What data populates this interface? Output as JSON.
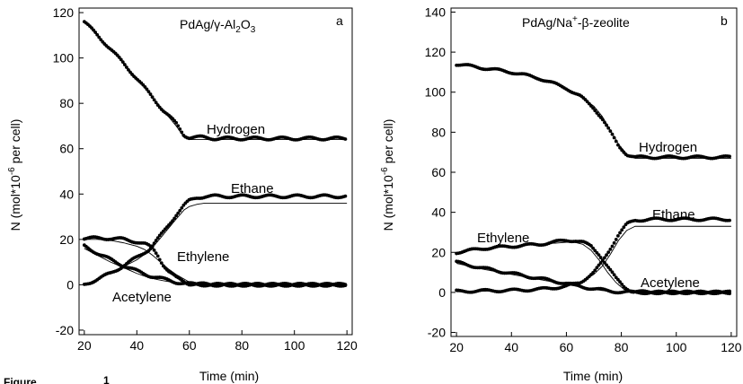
{
  "figure_caption": {
    "word": "Figure",
    "number": "1"
  },
  "chart_data": [
    {
      "type": "scatter",
      "panel_letter": "a",
      "title": "PdAg/γ-Al2O3",
      "title_parts": {
        "main": "PdAg/γ-Al",
        "sub1": "2",
        "mid": "O",
        "sub2": "3"
      },
      "xlabel": "Time (min)",
      "ylabel": "N (mol*10-6 per cell)",
      "ylabel_parts": {
        "pre": "N (mol*10",
        "sup": "-6",
        "post": " per cell)"
      },
      "xlim": [
        18,
        122
      ],
      "ylim": [
        -22,
        122
      ],
      "xticks": [
        20,
        40,
        60,
        80,
        100,
        120
      ],
      "yticks": [
        -20,
        0,
        20,
        40,
        60,
        80,
        100,
        120
      ],
      "series": [
        {
          "name": "Hydrogen",
          "x": [
            20,
            30,
            40,
            50,
            55,
            58,
            60,
            65,
            70,
            80,
            90,
            100,
            110,
            120
          ],
          "y": [
            116,
            104,
            91,
            77,
            71,
            66,
            65,
            65,
            64.5,
            64.5,
            64.5,
            64.5,
            64.5,
            64.5
          ],
          "fit": [
            116,
            104,
            91,
            77,
            70,
            65,
            64,
            64,
            64,
            64,
            64,
            64,
            64,
            64
          ]
        },
        {
          "name": "Ethane",
          "x": [
            20,
            30,
            40,
            45,
            50,
            55,
            58,
            60,
            63,
            66,
            70,
            80,
            90,
            100,
            110,
            120
          ],
          "y": [
            0,
            5,
            12,
            16,
            23,
            31,
            35,
            37,
            38.5,
            39,
            39,
            39,
            39,
            39,
            39,
            39
          ],
          "fit": [
            0,
            5,
            11,
            15,
            22,
            29,
            33,
            34.5,
            35.5,
            36,
            36,
            36,
            36,
            36,
            36,
            36
          ]
        },
        {
          "name": "Ethylene",
          "x": [
            20,
            25,
            30,
            35,
            40,
            43,
            46,
            48,
            50,
            52,
            55,
            58,
            60,
            65,
            70,
            80,
            90,
            100,
            110,
            120
          ],
          "y": [
            20.5,
            20.5,
            20.5,
            20,
            19,
            18,
            16,
            13,
            9,
            6,
            3,
            1.5,
            0.5,
            0.2,
            0,
            0,
            0,
            0,
            0,
            0
          ],
          "fit": [
            20,
            20,
            19.5,
            18.5,
            17,
            15.5,
            13,
            11,
            9,
            7,
            4.5,
            2.5,
            1.2,
            0.3,
            0,
            0,
            0,
            0,
            0,
            0
          ]
        },
        {
          "name": "Acetylene",
          "x": [
            20,
            25,
            30,
            35,
            40,
            45,
            50,
            55,
            58,
            60,
            65,
            70,
            80,
            90,
            100,
            110,
            120
          ],
          "y": [
            17,
            14,
            11,
            8.5,
            6,
            4,
            2.5,
            1.2,
            0.6,
            0.3,
            0.1,
            0,
            0,
            0,
            0,
            0,
            0
          ],
          "fit": [
            16,
            13,
            10,
            7.5,
            5,
            3,
            1.8,
            0.8,
            0.3,
            0.1,
            0,
            0,
            0,
            0,
            0,
            0,
            0
          ]
        }
      ]
    },
    {
      "type": "scatter",
      "panel_letter": "b",
      "title": "PdAg/Na+-β-zeolite",
      "title_parts": {
        "main": "PdAg/Na",
        "sup": "+",
        "post": "-β-zeolite"
      },
      "xlabel": "Time (min)",
      "ylabel": "N (mol*10-6 per cell)",
      "ylabel_parts": {
        "pre": "N (mol*10",
        "sup": "-6",
        "post": " per cell)"
      },
      "xlim": [
        18,
        122
      ],
      "ylim": [
        -22,
        142
      ],
      "xticks": [
        20,
        40,
        60,
        80,
        100,
        120
      ],
      "yticks": [
        -20,
        0,
        20,
        40,
        60,
        80,
        100,
        120,
        140
      ],
      "series": [
        {
          "name": "Hydrogen",
          "x": [
            20,
            30,
            40,
            50,
            60,
            65,
            70,
            73,
            76,
            79,
            82,
            85,
            90,
            100,
            110,
            120
          ],
          "y": [
            114,
            112,
            110,
            107,
            102,
            98,
            92,
            87,
            80,
            73,
            69,
            67.5,
            67.5,
            67.5,
            67.5,
            67.5
          ],
          "fit": [
            114,
            112,
            110,
            107,
            102,
            98,
            93,
            88,
            81,
            74,
            69,
            67,
            67,
            67,
            67,
            67
          ]
        },
        {
          "name": "Ethane",
          "x": [
            20,
            30,
            40,
            50,
            60,
            65,
            70,
            73,
            76,
            79,
            82,
            85,
            90,
            100,
            110,
            120
          ],
          "y": [
            0.5,
            0.8,
            1,
            1.5,
            3,
            5,
            10,
            15,
            22,
            29,
            34,
            36,
            36.5,
            36.5,
            36.5,
            36.5
          ],
          "fit": [
            0.3,
            0.6,
            1,
            1.5,
            3,
            5,
            9,
            13,
            19,
            26,
            31,
            33,
            33,
            33,
            33,
            33
          ]
        },
        {
          "name": "Ethylene",
          "x": [
            20,
            30,
            40,
            50,
            55,
            60,
            63,
            66,
            69,
            72,
            75,
            78,
            81,
            84,
            90,
            100,
            110,
            120
          ],
          "y": [
            20,
            22,
            23,
            24,
            25,
            26,
            26,
            25,
            23,
            19,
            13,
            7,
            3,
            0.5,
            0,
            0,
            0,
            0
          ],
          "fit": [
            20,
            22,
            23,
            24,
            24.5,
            25,
            25,
            24,
            21,
            16,
            10,
            5,
            1.5,
            0.3,
            0,
            0,
            0,
            0
          ]
        },
        {
          "name": "Acetylene",
          "x": [
            20,
            30,
            40,
            50,
            60,
            65,
            70,
            75,
            80,
            85,
            90,
            100,
            110,
            120
          ],
          "y": [
            15,
            12,
            9.5,
            7,
            4.5,
            3,
            1.8,
            0.8,
            0.2,
            0,
            0,
            0,
            0,
            0
          ],
          "fit": [
            14.5,
            11.5,
            9,
            6.5,
            4,
            2.7,
            1.5,
            0.6,
            0.1,
            0,
            0,
            0,
            0,
            0
          ]
        }
      ]
    }
  ]
}
